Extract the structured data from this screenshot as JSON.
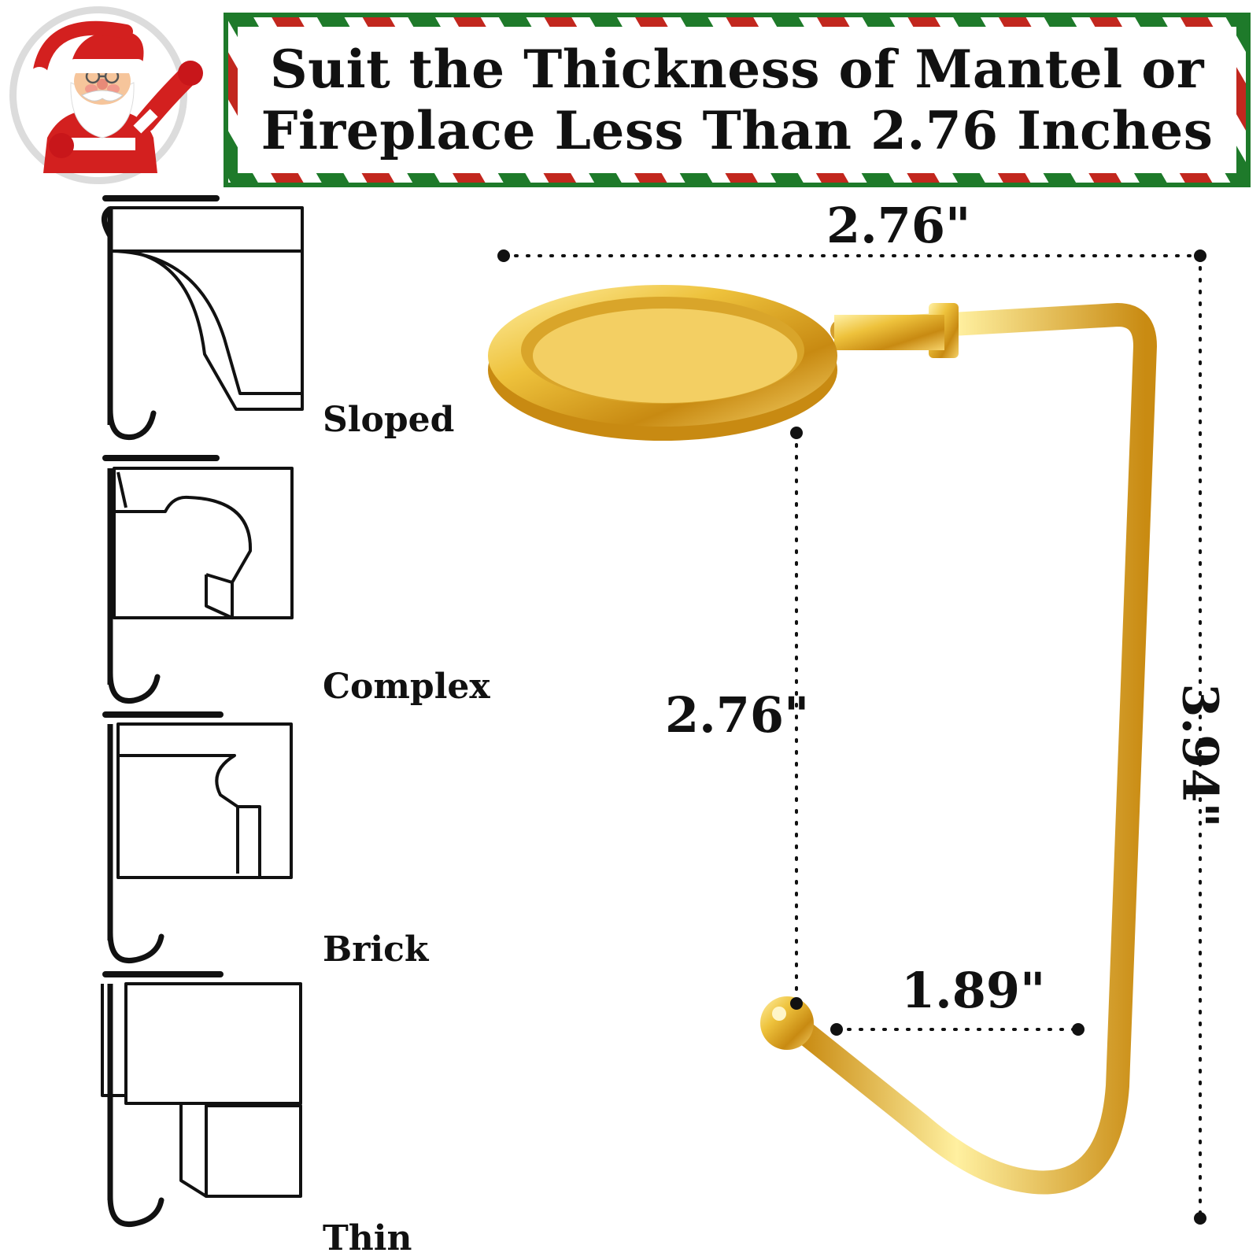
{
  "header": {
    "line1": "Suit the Thickness of Mantel or",
    "line2": "Fireplace Less Than 2.76 Inches",
    "stripe_colors": [
      "#1e7a2a",
      "#c2271e"
    ]
  },
  "mantel_types": [
    {
      "label": "Sloped"
    },
    {
      "label": "Complex"
    },
    {
      "label": "Brick"
    },
    {
      "label": "Thin"
    }
  ],
  "dimensions": {
    "top_width": "2.76\"",
    "hook_reach": "2.76\"",
    "hook_gap": "1.89\"",
    "total_height": "3.94\""
  },
  "product": {
    "name_icon": "stocking-holder-hook",
    "finish_color": "#e0b12a"
  },
  "badge": {
    "icon": "santa-claus-icon"
  }
}
